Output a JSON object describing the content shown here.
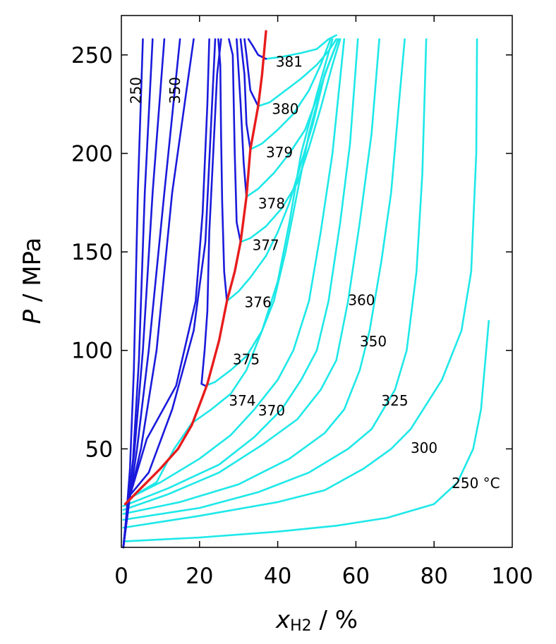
{
  "chart_data": {
    "type": "line",
    "xlabel_main": "x",
    "xlabel_sub": "H2",
    "xlabel_unit": " / %",
    "ylabel_var": "P",
    "ylabel_unit": " / MPa",
    "xlim": [
      0,
      100
    ],
    "ylim": [
      0,
      270
    ],
    "xticks": [
      0,
      20,
      40,
      60,
      80,
      100
    ],
    "yticks": [
      50,
      100,
      150,
      200,
      250
    ],
    "colors": {
      "liquid": "#1a1adc",
      "vapor": "#1ee8e8",
      "critical": "#e81c1c"
    },
    "liquid_curves": [
      {
        "name": "250",
        "points": [
          [
            0.5,
            0
          ],
          [
            1.2,
            14
          ],
          [
            2.2,
            40
          ],
          [
            3.2,
            90
          ],
          [
            4.2,
            180
          ],
          [
            5.5,
            258
          ]
        ]
      },
      {
        "name": "liq-b",
        "points": [
          [
            0.5,
            0
          ],
          [
            1.5,
            18
          ],
          [
            3,
            45
          ],
          [
            4.5,
            95
          ],
          [
            6,
            180
          ],
          [
            8,
            258
          ]
        ]
      },
      {
        "name": "liq-c",
        "points": [
          [
            0.5,
            0
          ],
          [
            1.5,
            20
          ],
          [
            3.3,
            48
          ],
          [
            5.5,
            100
          ],
          [
            8,
            180
          ],
          [
            11,
            258
          ]
        ]
      },
      {
        "name": "350",
        "points": [
          [
            0.5,
            0
          ],
          [
            2,
            23
          ],
          [
            4,
            50
          ],
          [
            7,
            100
          ],
          [
            11,
            180
          ],
          [
            15,
            258
          ]
        ]
      },
      {
        "name": "liq-e",
        "points": [
          [
            0.5,
            0
          ],
          [
            2,
            24
          ],
          [
            5,
            50
          ],
          [
            9,
            100
          ],
          [
            13,
            180
          ],
          [
            18.5,
            258
          ]
        ]
      },
      {
        "name": "liq-f",
        "points": [
          [
            0.5,
            0
          ],
          [
            2,
            25
          ],
          [
            6.5,
            55
          ],
          [
            14,
            82
          ],
          [
            19,
            125
          ],
          [
            20.8,
            170
          ],
          [
            22,
            225
          ],
          [
            22.5,
            258
          ]
        ]
      },
      {
        "name": "liq-g",
        "points": [
          [
            0.5,
            0
          ],
          [
            2,
            26
          ],
          [
            7,
            38
          ],
          [
            13,
            70
          ],
          [
            18.5,
            110
          ],
          [
            21.5,
            155
          ],
          [
            24,
            258
          ]
        ]
      },
      {
        "name": "liq-h",
        "points": [
          [
            25.5,
            258
          ],
          [
            24.5,
            240
          ],
          [
            23.5,
            200
          ],
          [
            22.5,
            160
          ],
          [
            22,
            120
          ],
          [
            21.3,
            100
          ],
          [
            20.5,
            83
          ],
          [
            21.5,
            82
          ]
        ]
      },
      {
        "name": "liq-376",
        "points": [
          [
            27,
            125
          ],
          [
            26.3,
            140
          ],
          [
            25.8,
            175
          ],
          [
            25.5,
            210
          ],
          [
            25.3,
            245
          ],
          [
            24.8,
            258
          ]
        ]
      },
      {
        "name": "liq-377",
        "points": [
          [
            30.5,
            155
          ],
          [
            29.5,
            165
          ],
          [
            29,
            200
          ],
          [
            28.5,
            250
          ],
          [
            27.5,
            258
          ]
        ]
      },
      {
        "name": "liq-378",
        "points": [
          [
            32,
            178
          ],
          [
            31.3,
            195
          ],
          [
            30.5,
            225
          ],
          [
            29.5,
            258
          ]
        ]
      },
      {
        "name": "liq-379",
        "points": [
          [
            33,
            202
          ],
          [
            32,
            215
          ],
          [
            31.5,
            240
          ],
          [
            30.5,
            258
          ]
        ]
      },
      {
        "name": "liq-380",
        "points": [
          [
            35,
            224
          ],
          [
            33,
            232
          ],
          [
            32,
            250
          ],
          [
            31.5,
            258
          ]
        ]
      },
      {
        "name": "liq-381",
        "points": [
          [
            37,
            248
          ],
          [
            35,
            250
          ],
          [
            33.5,
            255
          ],
          [
            32.5,
            258
          ]
        ]
      }
    ],
    "vapor_curves": [
      {
        "name": "250 °C",
        "points": [
          [
            0.5,
            3
          ],
          [
            20,
            5
          ],
          [
            40,
            8
          ],
          [
            55,
            11
          ],
          [
            68,
            15
          ],
          [
            80,
            22
          ],
          [
            86,
            33
          ],
          [
            90,
            50
          ],
          [
            92,
            70
          ],
          [
            94,
            115
          ]
        ]
      },
      {
        "name": "300",
        "points": [
          [
            0.5,
            10
          ],
          [
            20,
            16
          ],
          [
            40,
            23
          ],
          [
            52,
            29
          ],
          [
            62,
            40
          ],
          [
            69,
            50
          ],
          [
            74,
            60
          ],
          [
            82,
            85
          ],
          [
            87,
            110
          ],
          [
            89.5,
            140
          ],
          [
            90.8,
            200
          ],
          [
            91,
            258
          ]
        ]
      },
      {
        "name": "325",
        "points": [
          [
            0.5,
            14
          ],
          [
            20,
            20
          ],
          [
            35,
            28
          ],
          [
            48,
            38
          ],
          [
            58,
            50
          ],
          [
            64,
            60
          ],
          [
            70,
            80
          ],
          [
            73,
            100
          ],
          [
            75.5,
            140
          ],
          [
            77,
            190
          ],
          [
            78,
            258
          ]
        ]
      },
      {
        "name": "350",
        "points": [
          [
            0.5,
            17
          ],
          [
            15,
            23
          ],
          [
            30,
            32
          ],
          [
            43,
            45
          ],
          [
            52,
            58
          ],
          [
            57,
            70
          ],
          [
            61,
            90
          ],
          [
            63.5,
            110
          ],
          [
            66.5,
            145
          ],
          [
            69,
            180
          ],
          [
            71,
            225
          ],
          [
            72.5,
            258
          ]
        ]
      },
      {
        "name": "360",
        "points": [
          [
            0.5,
            19
          ],
          [
            12,
            27
          ],
          [
            25,
            38
          ],
          [
            36,
            52
          ],
          [
            45,
            65
          ],
          [
            51,
            80
          ],
          [
            55,
            95
          ],
          [
            58,
            125
          ],
          [
            61,
            165
          ],
          [
            64,
            210
          ],
          [
            66,
            258
          ]
        ]
      },
      {
        "name": "370",
        "points": [
          [
            0.5,
            21
          ],
          [
            12,
            30
          ],
          [
            25,
            42
          ],
          [
            34,
            56
          ],
          [
            41,
            70
          ],
          [
            46,
            85
          ],
          [
            50,
            100
          ],
          [
            53,
            125
          ],
          [
            56,
            165
          ],
          [
            58.5,
            205
          ],
          [
            60.5,
            258
          ]
        ]
      },
      {
        "name": "vap-372",
        "points": [
          [
            2,
            25
          ],
          [
            10,
            33
          ],
          [
            20,
            45
          ],
          [
            28,
            57
          ],
          [
            34,
            70
          ],
          [
            40,
            85
          ],
          [
            44,
            100
          ],
          [
            48,
            125
          ],
          [
            51,
            160
          ],
          [
            54,
            200
          ],
          [
            57,
            258
          ]
        ]
      },
      {
        "name": "374",
        "points": [
          [
            3,
            26
          ],
          [
            9,
            33
          ],
          [
            13.5,
            50
          ],
          [
            18,
            63
          ],
          [
            23,
            70
          ],
          [
            28,
            78
          ],
          [
            32,
            90
          ],
          [
            36,
            110
          ],
          [
            40,
            135
          ],
          [
            43,
            165
          ],
          [
            46,
            200
          ],
          [
            50,
            230
          ],
          [
            54,
            258
          ]
        ]
      },
      {
        "name": "375",
        "points": [
          [
            21.5,
            82
          ],
          [
            24,
            84
          ],
          [
            28,
            90
          ],
          [
            32,
            97
          ],
          [
            36,
            110
          ],
          [
            39,
            125
          ],
          [
            42,
            150
          ],
          [
            45,
            180
          ],
          [
            48,
            210
          ],
          [
            52,
            240
          ],
          [
            55.5,
            258
          ]
        ]
      },
      {
        "name": "376",
        "points": [
          [
            27,
            125
          ],
          [
            30,
            130
          ],
          [
            33,
            137
          ],
          [
            37,
            148
          ],
          [
            40,
            160
          ],
          [
            43,
            175
          ],
          [
            46,
            195
          ],
          [
            49,
            215
          ],
          [
            52,
            240
          ],
          [
            55.5,
            258
          ]
        ]
      },
      {
        "name": "377",
        "points": [
          [
            30.5,
            155
          ],
          [
            33,
            157
          ],
          [
            37,
            163
          ],
          [
            41,
            172
          ],
          [
            45,
            185
          ],
          [
            48,
            203
          ],
          [
            51,
            223
          ],
          [
            54,
            245
          ],
          [
            56,
            258
          ]
        ]
      },
      {
        "name": "378",
        "points": [
          [
            32,
            178
          ],
          [
            35,
            182
          ],
          [
            39,
            190
          ],
          [
            43,
            200
          ],
          [
            47,
            212
          ],
          [
            50,
            228
          ],
          [
            53,
            245
          ],
          [
            55.5,
            258
          ]
        ]
      },
      {
        "name": "379",
        "points": [
          [
            33,
            202
          ],
          [
            36,
            205
          ],
          [
            40,
            212
          ],
          [
            44,
            220
          ],
          [
            48,
            232
          ],
          [
            51,
            245
          ],
          [
            53.5,
            258
          ]
        ]
      },
      {
        "name": "380",
        "points": [
          [
            35,
            224
          ],
          [
            38,
            226
          ],
          [
            42,
            232
          ],
          [
            46,
            238
          ],
          [
            50,
            245
          ],
          [
            53,
            252
          ],
          [
            55,
            258
          ]
        ]
      },
      {
        "name": "381",
        "points": [
          [
            37,
            248
          ],
          [
            41,
            249
          ],
          [
            46,
            251
          ],
          [
            50,
            253
          ],
          [
            53,
            258
          ],
          [
            55,
            260
          ]
        ]
      }
    ],
    "critical_line": {
      "name": "critical-locus",
      "points": [
        [
          1,
          22
        ],
        [
          5,
          30
        ],
        [
          10,
          40
        ],
        [
          14.5,
          50
        ],
        [
          18,
          62
        ],
        [
          20.5,
          75
        ],
        [
          22,
          83
        ],
        [
          25,
          105
        ],
        [
          27,
          125
        ],
        [
          29,
          140
        ],
        [
          30.5,
          155
        ],
        [
          32,
          178
        ],
        [
          33,
          202
        ],
        [
          35,
          224
        ],
        [
          36,
          240
        ],
        [
          37,
          262
        ]
      ]
    },
    "curve_labels": [
      {
        "text": "381",
        "x": 39.5,
        "y": 244,
        "rotate": 0
      },
      {
        "text": "380",
        "x": 38.5,
        "y": 220,
        "rotate": 0
      },
      {
        "text": "379",
        "x": 37,
        "y": 198,
        "rotate": 0
      },
      {
        "text": "378",
        "x": 35,
        "y": 172,
        "rotate": 0
      },
      {
        "text": "377",
        "x": 33.5,
        "y": 151,
        "rotate": 0
      },
      {
        "text": "376",
        "x": 31.5,
        "y": 122,
        "rotate": 0
      },
      {
        "text": "375",
        "x": 28.5,
        "y": 93,
        "rotate": 0
      },
      {
        "text": "374",
        "x": 27.5,
        "y": 72,
        "rotate": 0
      },
      {
        "text": "370",
        "x": 35,
        "y": 67,
        "rotate": 0
      },
      {
        "text": "360",
        "x": 58,
        "y": 123,
        "rotate": 0
      },
      {
        "text": "350",
        "x": 61,
        "y": 102,
        "rotate": 0
      },
      {
        "text": "325",
        "x": 66.5,
        "y": 72,
        "rotate": 0
      },
      {
        "text": "300",
        "x": 74,
        "y": 48,
        "rotate": 0
      },
      {
        "text": "250 °C",
        "x": 84.5,
        "y": 30,
        "rotate": 0
      },
      {
        "text": "250",
        "x": 5,
        "y": 232,
        "rotate": -90
      },
      {
        "text": "350",
        "x": 15,
        "y": 232,
        "rotate": -90
      }
    ]
  }
}
